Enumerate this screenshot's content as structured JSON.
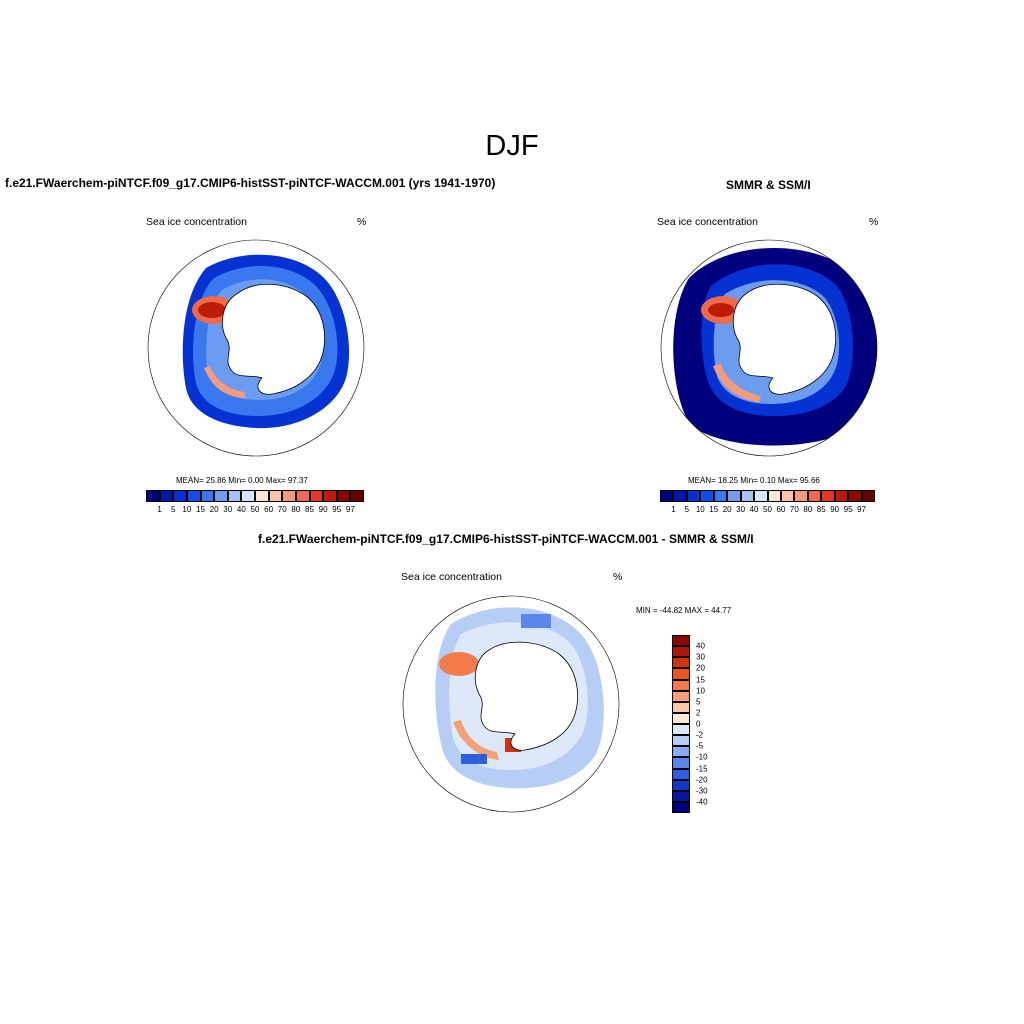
{
  "figure": {
    "title": "DJF"
  },
  "panels": [
    {
      "title": "f.e21.FWaerchem-piNTCF.f09_g17.CMIP6-histSST-piNTCF-WACCM.001 (yrs 1941-1970)",
      "left_label": "Sea ice concentration",
      "right_label": "%",
      "stats": "MEAN=  25.86  Min=   0.00  Max=  97.37"
    },
    {
      "title": "SMMR & SSM/I",
      "left_label": "Sea ice concentration",
      "right_label": "%",
      "stats": "MEAN=  18.25  Min=   0.10  Max=  95.66"
    },
    {
      "title": "f.e21.FWaerchem-piNTCF.f09_g17.CMIP6-histSST-piNTCF-WACCM.001 - SMMR & SSM/I",
      "left_label": "Sea ice concentration",
      "right_label": "%",
      "stats": "MIN = -44.82 MAX =  44.77"
    }
  ],
  "colorbar_concentration": {
    "labels": [
      "1",
      "5",
      "10",
      "15",
      "20",
      "30",
      "40",
      "50",
      "60",
      "70",
      "80",
      "85",
      "90",
      "95",
      "97"
    ],
    "colors": [
      "#00007f",
      "#0018a8",
      "#0532d2",
      "#1050e8",
      "#3a78f0",
      "#6c9cf2",
      "#a3c3f6",
      "#d6e6fb",
      "#fde5d3",
      "#fbc2a6",
      "#f59a7a",
      "#ee6a4a",
      "#e03b1f",
      "#c01a08",
      "#8a0800",
      "#660000"
    ]
  },
  "colorbar_difference": {
    "labels": [
      "40",
      "30",
      "20",
      "15",
      "10",
      "5",
      "2",
      "0",
      "-2",
      "-5",
      "-10",
      "-15",
      "-20",
      "-30",
      "-40"
    ],
    "colors": [
      "#8a0800",
      "#b01505",
      "#d5300d",
      "#ea5520",
      "#f27a4b",
      "#f6a07a",
      "#fbc9aa",
      "#fde8d6",
      "#dde8fa",
      "#b6cdf6",
      "#89abf1",
      "#5b86ec",
      "#2e5fe2",
      "#1038c8",
      "#0518a0",
      "#00007f"
    ]
  }
}
